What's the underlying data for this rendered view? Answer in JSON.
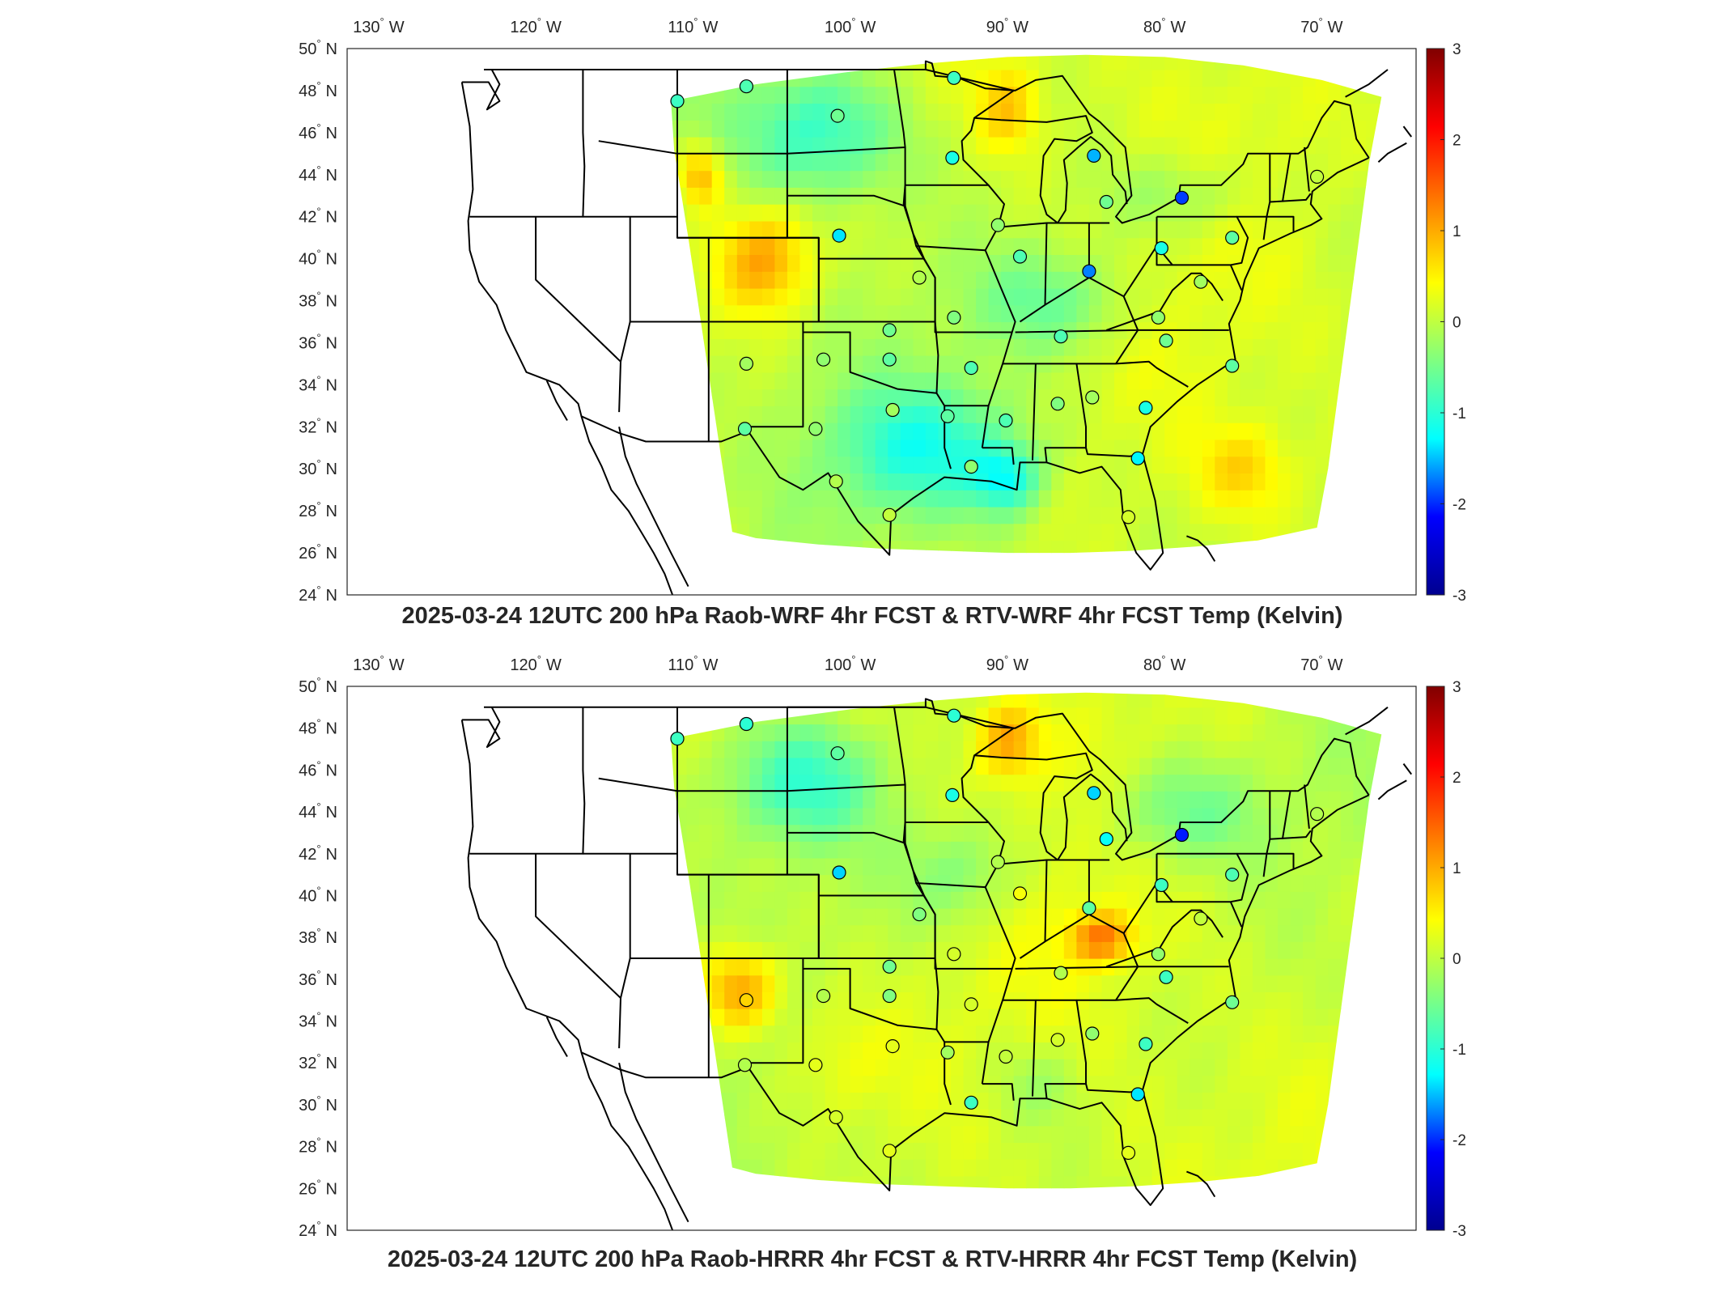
{
  "panels": [
    {
      "title": "2025-03-24 12UTC 200 hPa Raob-WRF 4hr FCST & RTV-WRF 4hr FCST Temp (Kelvin)",
      "stations": [
        {
          "lon": -111.0,
          "lat": 47.5,
          "v": -0.4
        },
        {
          "lon": -106.6,
          "lat": 48.2,
          "v": -0.3
        },
        {
          "lon": -100.8,
          "lat": 46.8,
          "v": -0.1
        },
        {
          "lon": -93.4,
          "lat": 48.6,
          "v": -0.4
        },
        {
          "lon": -93.5,
          "lat": 44.8,
          "v": -0.6
        },
        {
          "lon": -84.5,
          "lat": 44.9,
          "v": -1.2
        },
        {
          "lon": -83.7,
          "lat": 42.7,
          "v": -0.1
        },
        {
          "lon": -78.9,
          "lat": 42.9,
          "v": -1.9
        },
        {
          "lon": -70.3,
          "lat": 43.9,
          "v": 0.4
        },
        {
          "lon": -100.7,
          "lat": 41.1,
          "v": -0.9
        },
        {
          "lon": -90.6,
          "lat": 41.6,
          "v": 0.1
        },
        {
          "lon": -89.2,
          "lat": 40.1,
          "v": -0.3
        },
        {
          "lon": -84.8,
          "lat": 39.4,
          "v": -1.5
        },
        {
          "lon": -80.2,
          "lat": 40.5,
          "v": -0.6
        },
        {
          "lon": -95.6,
          "lat": 39.1,
          "v": 0.3
        },
        {
          "lon": -93.4,
          "lat": 37.2,
          "v": 0.0
        },
        {
          "lon": -97.5,
          "lat": 36.6,
          "v": -0.1
        },
        {
          "lon": -86.6,
          "lat": 36.3,
          "v": -0.3
        },
        {
          "lon": -80.4,
          "lat": 37.2,
          "v": 0.1
        },
        {
          "lon": -77.7,
          "lat": 38.9,
          "v": 0.2
        },
        {
          "lon": -75.7,
          "lat": 41.0,
          "v": -0.2
        },
        {
          "lon": -106.6,
          "lat": 35.0,
          "v": 0.2
        },
        {
          "lon": -101.7,
          "lat": 35.2,
          "v": 0.1
        },
        {
          "lon": -97.5,
          "lat": 35.2,
          "v": -0.2
        },
        {
          "lon": -92.3,
          "lat": 34.8,
          "v": -0.3
        },
        {
          "lon": -79.9,
          "lat": 36.1,
          "v": -0.1
        },
        {
          "lon": -75.7,
          "lat": 34.9,
          "v": -0.2
        },
        {
          "lon": -97.3,
          "lat": 32.8,
          "v": 0.2
        },
        {
          "lon": -93.8,
          "lat": 32.5,
          "v": -0.2
        },
        {
          "lon": -90.1,
          "lat": 32.3,
          "v": -0.3
        },
        {
          "lon": -86.8,
          "lat": 33.1,
          "v": 0.0
        },
        {
          "lon": -84.6,
          "lat": 33.4,
          "v": 0.2
        },
        {
          "lon": -81.2,
          "lat": 32.9,
          "v": -0.6
        },
        {
          "lon": -106.7,
          "lat": 31.9,
          "v": -0.2
        },
        {
          "lon": -102.2,
          "lat": 31.9,
          "v": 0.1
        },
        {
          "lon": -92.3,
          "lat": 30.1,
          "v": 0.1
        },
        {
          "lon": -81.7,
          "lat": 30.5,
          "v": -0.8
        },
        {
          "lon": -100.9,
          "lat": 29.4,
          "v": 0.3
        },
        {
          "lon": -97.5,
          "lat": 27.8,
          "v": 0.4
        },
        {
          "lon": -82.3,
          "lat": 27.7,
          "v": 0.5
        }
      ]
    },
    {
      "title": "2025-03-24 12UTC 200 hPa Raob-HRRR 4hr FCST & RTV-HRRR 4hr FCST Temp (Kelvin)",
      "stations": [
        {
          "lon": -111.0,
          "lat": 47.5,
          "v": -0.4
        },
        {
          "lon": -106.6,
          "lat": 48.2,
          "v": -0.5
        },
        {
          "lon": -100.8,
          "lat": 46.8,
          "v": -0.2
        },
        {
          "lon": -93.4,
          "lat": 48.6,
          "v": -0.5
        },
        {
          "lon": -93.5,
          "lat": 44.8,
          "v": -0.6
        },
        {
          "lon": -84.5,
          "lat": 44.9,
          "v": -1.0
        },
        {
          "lon": -83.7,
          "lat": 42.7,
          "v": -0.7
        },
        {
          "lon": -78.9,
          "lat": 42.9,
          "v": -2.1
        },
        {
          "lon": -70.3,
          "lat": 43.9,
          "v": 0.3
        },
        {
          "lon": -100.7,
          "lat": 41.1,
          "v": -1.0
        },
        {
          "lon": -90.6,
          "lat": 41.6,
          "v": 0.3
        },
        {
          "lon": -89.2,
          "lat": 40.1,
          "v": 0.7
        },
        {
          "lon": -84.8,
          "lat": 39.4,
          "v": -0.2
        },
        {
          "lon": -80.2,
          "lat": 40.5,
          "v": -0.4
        },
        {
          "lon": -95.6,
          "lat": 39.1,
          "v": 0.0
        },
        {
          "lon": -93.4,
          "lat": 37.2,
          "v": 0.5
        },
        {
          "lon": -97.5,
          "lat": 36.6,
          "v": -0.1
        },
        {
          "lon": -86.6,
          "lat": 36.3,
          "v": 0.3
        },
        {
          "lon": -80.4,
          "lat": 37.2,
          "v": 0.1
        },
        {
          "lon": -77.7,
          "lat": 38.9,
          "v": 0.4
        },
        {
          "lon": -75.7,
          "lat": 41.0,
          "v": -0.3
        },
        {
          "lon": -106.6,
          "lat": 35.0,
          "v": 1.0
        },
        {
          "lon": -101.7,
          "lat": 35.2,
          "v": 0.3
        },
        {
          "lon": -97.5,
          "lat": 35.2,
          "v": 0.0
        },
        {
          "lon": -92.3,
          "lat": 34.8,
          "v": 0.5
        },
        {
          "lon": -79.9,
          "lat": 36.1,
          "v": -0.4
        },
        {
          "lon": -75.7,
          "lat": 34.9,
          "v": -0.1
        },
        {
          "lon": -97.3,
          "lat": 32.8,
          "v": 0.6
        },
        {
          "lon": -93.8,
          "lat": 32.5,
          "v": 0.2
        },
        {
          "lon": -90.1,
          "lat": 32.3,
          "v": 0.4
        },
        {
          "lon": -86.8,
          "lat": 33.1,
          "v": 0.5
        },
        {
          "lon": -84.6,
          "lat": 33.4,
          "v": 0.1
        },
        {
          "lon": -81.2,
          "lat": 32.9,
          "v": -0.4
        },
        {
          "lon": -106.7,
          "lat": 31.9,
          "v": 0.3
        },
        {
          "lon": -102.2,
          "lat": 31.9,
          "v": 0.6
        },
        {
          "lon": -92.3,
          "lat": 30.1,
          "v": -0.4
        },
        {
          "lon": -81.7,
          "lat": 30.5,
          "v": -0.9
        },
        {
          "lon": -100.9,
          "lat": 29.4,
          "v": 0.5
        },
        {
          "lon": -97.5,
          "lat": 27.8,
          "v": 0.6
        },
        {
          "lon": -82.3,
          "lat": 27.7,
          "v": 0.6
        }
      ]
    }
  ],
  "lon_ticks": [
    {
      "deg": "130",
      "hem": "W",
      "value": -130
    },
    {
      "deg": "120",
      "hem": "W",
      "value": -120
    },
    {
      "deg": "110",
      "hem": "W",
      "value": -110
    },
    {
      "deg": "100",
      "hem": "W",
      "value": -100
    },
    {
      "deg": "90",
      "hem": "W",
      "value": -90
    },
    {
      "deg": "80",
      "hem": "W",
      "value": -80
    },
    {
      "deg": "70",
      "hem": "W",
      "value": -70
    }
  ],
  "lat_ticks": [
    {
      "deg": "50",
      "hem": "N",
      "value": 50
    },
    {
      "deg": "48",
      "hem": "N",
      "value": 48
    },
    {
      "deg": "46",
      "hem": "N",
      "value": 46
    },
    {
      "deg": "44",
      "hem": "N",
      "value": 44
    },
    {
      "deg": "42",
      "hem": "N",
      "value": 42
    },
    {
      "deg": "40",
      "hem": "N",
      "value": 40
    },
    {
      "deg": "38",
      "hem": "N",
      "value": 38
    },
    {
      "deg": "36",
      "hem": "N",
      "value": 36
    },
    {
      "deg": "34",
      "hem": "N",
      "value": 34
    },
    {
      "deg": "32",
      "hem": "N",
      "value": 32
    },
    {
      "deg": "30",
      "hem": "N",
      "value": 30
    },
    {
      "deg": "28",
      "hem": "N",
      "value": 28
    },
    {
      "deg": "26",
      "hem": "N",
      "value": 26
    },
    {
      "deg": "24",
      "hem": "N",
      "value": 24
    }
  ],
  "degree_symbol": "°",
  "colorbar": {
    "ticks": [
      "3",
      "2",
      "1",
      "0",
      "-1",
      "-2",
      "-3"
    ],
    "tick_values": [
      3,
      2,
      1,
      0,
      -1,
      -2,
      -3
    ],
    "range": [
      -3,
      3
    ],
    "colormap": "jet",
    "colors": [
      "#00008f",
      "#0000ff",
      "#00ffff",
      "#80ff80",
      "#ffff00",
      "#ff8000",
      "#ff0000",
      "#800000"
    ]
  }
}
